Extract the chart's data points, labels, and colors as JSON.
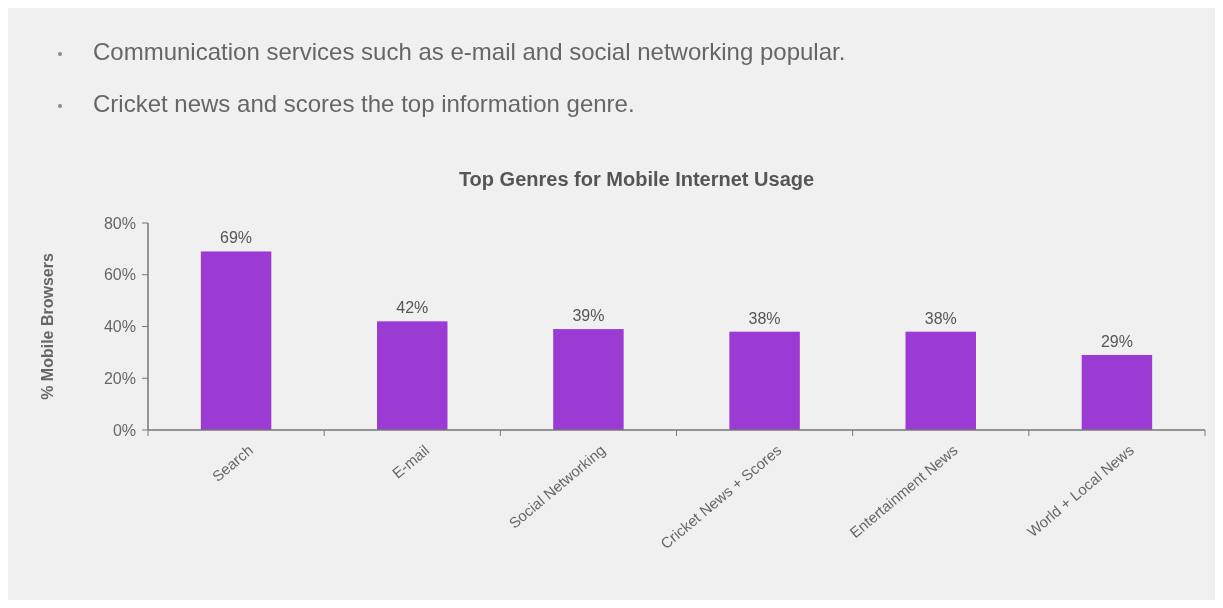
{
  "chart_data": {
    "type": "bar",
    "title": "Top Genres for Mobile Internet Usage",
    "ylabel": "% Mobile Browsers",
    "annotations": [
      "Communication services such as e-mail and social networking popular.",
      "Cricket news and scores the top information genre."
    ],
    "categories": [
      "Search",
      "E-mail",
      "Social Networking",
      "Cricket News + Scores",
      "Entertainment News",
      "World + Local News"
    ],
    "values": [
      69,
      42,
      39,
      38,
      38,
      29
    ],
    "value_labels": [
      "69%",
      "42%",
      "39%",
      "38%",
      "38%",
      "29%"
    ],
    "color": "#9b3bd4",
    "ylim": [
      0,
      80
    ],
    "yticks": [
      {
        "value": 0,
        "label": "0%"
      },
      {
        "value": 20,
        "label": "20%"
      },
      {
        "value": 40,
        "label": "40%"
      },
      {
        "value": 60,
        "label": "60%"
      },
      {
        "value": 80,
        "label": "80%"
      }
    ],
    "grid": false
  }
}
